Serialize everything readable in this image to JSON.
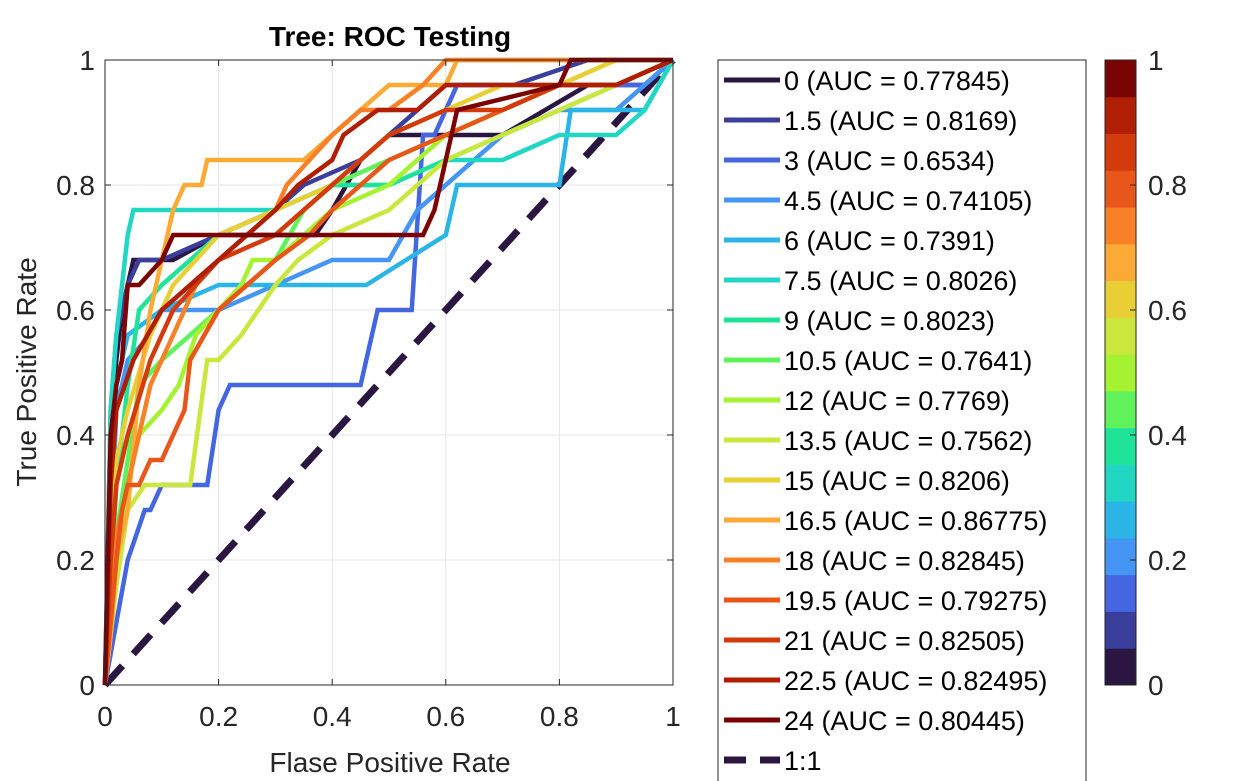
{
  "chart_data": {
    "type": "line",
    "title": "Tree: ROC Testing",
    "xlabel": "Flase Positive Rate",
    "ylabel": "True Positive Rate",
    "xlim": [
      0,
      1
    ],
    "ylim": [
      0,
      1
    ],
    "xticks": [
      "0",
      "0.2",
      "0.4",
      "0.6",
      "0.8",
      "1"
    ],
    "yticks": [
      "0",
      "0.2",
      "0.4",
      "0.6",
      "0.8",
      "1"
    ],
    "grid": true,
    "legend_position": "right",
    "series": [
      {
        "name": "0 (AUC = 0.77845)",
        "color": "#2a1640",
        "x": [
          0,
          0.01,
          0.02,
          0.03,
          0.05,
          0.12,
          0.2,
          0.3,
          0.37,
          0.4,
          0.45,
          0.5,
          0.6,
          0.7,
          0.85,
          0.95,
          1
        ],
        "y": [
          0,
          0.4,
          0.52,
          0.6,
          0.68,
          0.68,
          0.72,
          0.72,
          0.72,
          0.76,
          0.84,
          0.88,
          0.88,
          0.88,
          0.96,
          0.96,
          1
        ]
      },
      {
        "name": "1.5 (AUC = 0.8169)",
        "color": "#3a3f9c",
        "x": [
          0,
          0.01,
          0.02,
          0.04,
          0.06,
          0.1,
          0.2,
          0.3,
          0.35,
          0.45,
          0.5,
          0.6,
          0.72,
          0.85,
          0.95,
          1
        ],
        "y": [
          0,
          0.44,
          0.56,
          0.64,
          0.68,
          0.68,
          0.72,
          0.76,
          0.8,
          0.84,
          0.88,
          0.96,
          0.96,
          1,
          1,
          1
        ]
      },
      {
        "name": "3 (AUC = 0.6534)",
        "color": "#4466e0",
        "x": [
          0,
          0.04,
          0.07,
          0.08,
          0.1,
          0.18,
          0.2,
          0.22,
          0.45,
          0.47,
          0.48,
          0.5,
          0.54,
          0.56,
          0.58,
          0.62,
          0.65,
          0.8,
          0.95,
          1
        ],
        "y": [
          0,
          0.2,
          0.28,
          0.28,
          0.32,
          0.32,
          0.44,
          0.48,
          0.48,
          0.56,
          0.6,
          0.6,
          0.6,
          0.88,
          0.88,
          0.96,
          0.96,
          0.96,
          0.96,
          1
        ]
      },
      {
        "name": "4.5 (AUC = 0.74105)",
        "color": "#4595f5",
        "x": [
          0,
          0.02,
          0.04,
          0.08,
          0.1,
          0.12,
          0.2,
          0.3,
          0.4,
          0.5,
          0.55,
          0.6,
          0.65,
          0.7,
          0.8,
          0.9,
          0.95,
          1
        ],
        "y": [
          0,
          0.44,
          0.52,
          0.56,
          0.6,
          0.6,
          0.6,
          0.64,
          0.68,
          0.68,
          0.76,
          0.8,
          0.84,
          0.88,
          0.92,
          0.92,
          0.96,
          1
        ]
      },
      {
        "name": "6 (AUC = 0.7391)",
        "color": "#2bb5e6",
        "x": [
          0,
          0.02,
          0.04,
          0.1,
          0.2,
          0.3,
          0.4,
          0.46,
          0.6,
          0.62,
          0.68,
          0.8,
          0.82,
          0.95,
          1
        ],
        "y": [
          0,
          0.48,
          0.56,
          0.6,
          0.64,
          0.64,
          0.64,
          0.64,
          0.72,
          0.8,
          0.8,
          0.8,
          0.92,
          0.92,
          1
        ]
      },
      {
        "name": "7.5 (AUC = 0.8026)",
        "color": "#22d6c4",
        "x": [
          0,
          0.01,
          0.02,
          0.03,
          0.04,
          0.05,
          0.1,
          0.2,
          0.3,
          0.4,
          0.5,
          0.6,
          0.7,
          0.8,
          0.9,
          0.95,
          1
        ],
        "y": [
          0,
          0.44,
          0.56,
          0.64,
          0.72,
          0.76,
          0.76,
          0.76,
          0.76,
          0.8,
          0.8,
          0.84,
          0.84,
          0.88,
          0.88,
          0.92,
          1
        ]
      },
      {
        "name": "9 (AUC = 0.8023)",
        "color": "#20e39a",
        "x": [
          0,
          0.02,
          0.04,
          0.06,
          0.1,
          0.2,
          0.3,
          0.4,
          0.5,
          0.6,
          0.7,
          0.8,
          0.9,
          1
        ],
        "y": [
          0,
          0.32,
          0.48,
          0.6,
          0.64,
          0.72,
          0.76,
          0.8,
          0.8,
          0.84,
          0.88,
          0.92,
          0.96,
          1
        ]
      },
      {
        "name": "10.5 (AUC = 0.7641)",
        "color": "#5ff25a",
        "x": [
          0,
          0.02,
          0.04,
          0.06,
          0.1,
          0.15,
          0.2,
          0.25,
          0.3,
          0.35,
          0.4,
          0.5,
          0.6,
          0.7,
          0.8,
          0.9,
          1
        ],
        "y": [
          0,
          0.24,
          0.36,
          0.48,
          0.52,
          0.56,
          0.6,
          0.64,
          0.68,
          0.76,
          0.8,
          0.84,
          0.88,
          0.92,
          0.96,
          0.96,
          1
        ]
      },
      {
        "name": "12 (AUC = 0.7769)",
        "color": "#a4f232",
        "x": [
          0,
          0.02,
          0.04,
          0.06,
          0.1,
          0.13,
          0.16,
          0.2,
          0.24,
          0.26,
          0.3,
          0.35,
          0.4,
          0.5,
          0.6,
          0.7,
          0.8,
          0.9,
          1
        ],
        "y": [
          0,
          0.2,
          0.32,
          0.4,
          0.44,
          0.48,
          0.56,
          0.6,
          0.64,
          0.68,
          0.68,
          0.72,
          0.76,
          0.8,
          0.88,
          0.92,
          0.96,
          1,
          1
        ]
      },
      {
        "name": "13.5 (AUC = 0.7562)",
        "color": "#cbe63c",
        "x": [
          0,
          0.02,
          0.04,
          0.07,
          0.1,
          0.15,
          0.18,
          0.2,
          0.24,
          0.27,
          0.3,
          0.34,
          0.4,
          0.5,
          0.6,
          0.7,
          0.8,
          0.9,
          1
        ],
        "y": [
          0,
          0.16,
          0.28,
          0.32,
          0.32,
          0.32,
          0.52,
          0.52,
          0.56,
          0.6,
          0.64,
          0.68,
          0.72,
          0.76,
          0.84,
          0.88,
          0.92,
          0.96,
          1
        ]
      },
      {
        "name": "15 (AUC = 0.8206)",
        "color": "#e8cf36",
        "x": [
          0,
          0.02,
          0.04,
          0.08,
          0.12,
          0.16,
          0.2,
          0.3,
          0.4,
          0.45,
          0.5,
          0.6,
          0.7,
          0.8,
          0.9,
          1
        ],
        "y": [
          0,
          0.36,
          0.44,
          0.56,
          0.64,
          0.68,
          0.72,
          0.76,
          0.8,
          0.84,
          0.88,
          0.92,
          0.96,
          0.96,
          1,
          1
        ]
      },
      {
        "name": "16.5 (AUC = 0.86775)",
        "color": "#fbab35",
        "x": [
          0,
          0.01,
          0.02,
          0.04,
          0.06,
          0.08,
          0.1,
          0.12,
          0.14,
          0.17,
          0.18,
          0.3,
          0.35,
          0.4,
          0.45,
          0.5,
          0.6,
          0.62,
          0.7,
          0.8,
          1
        ],
        "y": [
          0,
          0.08,
          0.2,
          0.28,
          0.48,
          0.6,
          0.68,
          0.76,
          0.8,
          0.8,
          0.84,
          0.84,
          0.84,
          0.88,
          0.92,
          0.96,
          0.96,
          1,
          1,
          1,
          1
        ]
      },
      {
        "name": "18 (AUC = 0.82845)",
        "color": "#f88026",
        "x": [
          0,
          0.01,
          0.02,
          0.05,
          0.08,
          0.12,
          0.16,
          0.2,
          0.3,
          0.32,
          0.4,
          0.45,
          0.5,
          0.56,
          0.6,
          0.7,
          0.8,
          0.9,
          1
        ],
        "y": [
          0,
          0.12,
          0.24,
          0.36,
          0.48,
          0.56,
          0.64,
          0.68,
          0.76,
          0.8,
          0.88,
          0.92,
          0.92,
          0.96,
          1,
          1,
          1,
          1,
          1
        ]
      },
      {
        "name": "19.5 (AUC = 0.79275)",
        "color": "#e8561a",
        "x": [
          0,
          0.02,
          0.03,
          0.04,
          0.06,
          0.08,
          0.1,
          0.12,
          0.14,
          0.15,
          0.2,
          0.25,
          0.3,
          0.36,
          0.4,
          0.5,
          0.6,
          0.7,
          0.8,
          0.9,
          1
        ],
        "y": [
          0,
          0.2,
          0.28,
          0.32,
          0.32,
          0.36,
          0.36,
          0.4,
          0.44,
          0.52,
          0.6,
          0.64,
          0.68,
          0.72,
          0.76,
          0.84,
          0.88,
          0.92,
          0.96,
          0.96,
          1
        ]
      },
      {
        "name": "21 (AUC = 0.82505)",
        "color": "#d33b0c",
        "x": [
          0,
          0.01,
          0.02,
          0.04,
          0.08,
          0.12,
          0.16,
          0.2,
          0.3,
          0.35,
          0.4,
          0.45,
          0.5,
          0.6,
          0.7,
          0.8,
          0.9,
          1
        ],
        "y": [
          0,
          0.2,
          0.32,
          0.4,
          0.52,
          0.6,
          0.64,
          0.68,
          0.72,
          0.76,
          0.8,
          0.84,
          0.88,
          0.92,
          0.92,
          0.96,
          0.96,
          1
        ]
      },
      {
        "name": "22.5 (AUC = 0.82495)",
        "color": "#b01f03",
        "x": [
          0,
          0.01,
          0.02,
          0.05,
          0.1,
          0.15,
          0.2,
          0.25,
          0.3,
          0.34,
          0.4,
          0.42,
          0.48,
          0.5,
          0.55,
          0.6,
          0.7,
          0.8,
          0.9,
          1
        ],
        "y": [
          0,
          0.32,
          0.44,
          0.52,
          0.6,
          0.64,
          0.68,
          0.72,
          0.76,
          0.8,
          0.84,
          0.88,
          0.92,
          0.92,
          0.92,
          0.96,
          0.96,
          0.96,
          0.96,
          1
        ]
      },
      {
        "name": "24 (AUC = 0.80445)",
        "color": "#7a0403",
        "x": [
          0,
          0.01,
          0.02,
          0.03,
          0.04,
          0.06,
          0.1,
          0.12,
          0.2,
          0.3,
          0.4,
          0.5,
          0.56,
          0.58,
          0.6,
          0.62,
          0.8,
          0.82,
          1
        ],
        "y": [
          0,
          0.4,
          0.48,
          0.52,
          0.64,
          0.64,
          0.68,
          0.72,
          0.72,
          0.72,
          0.72,
          0.72,
          0.72,
          0.76,
          0.84,
          0.92,
          0.96,
          1,
          1
        ]
      }
    ],
    "reference_line": {
      "name": "1:1",
      "color": "#2a1640",
      "x": [
        0,
        1
      ],
      "y": [
        0,
        1
      ]
    },
    "colorbar": {
      "ticks": [
        "0",
        "0.2",
        "0.4",
        "0.6",
        "0.8",
        "1"
      ],
      "range": [
        0,
        1
      ],
      "colors": [
        "#2a1640",
        "#3a3f9c",
        "#4466e0",
        "#4595f5",
        "#2bb5e6",
        "#22d6c4",
        "#20e39a",
        "#5ff25a",
        "#a4f232",
        "#cbe63c",
        "#e8cf36",
        "#fbab35",
        "#f88026",
        "#e8561a",
        "#d33b0c",
        "#b01f03",
        "#7a0403"
      ]
    }
  }
}
